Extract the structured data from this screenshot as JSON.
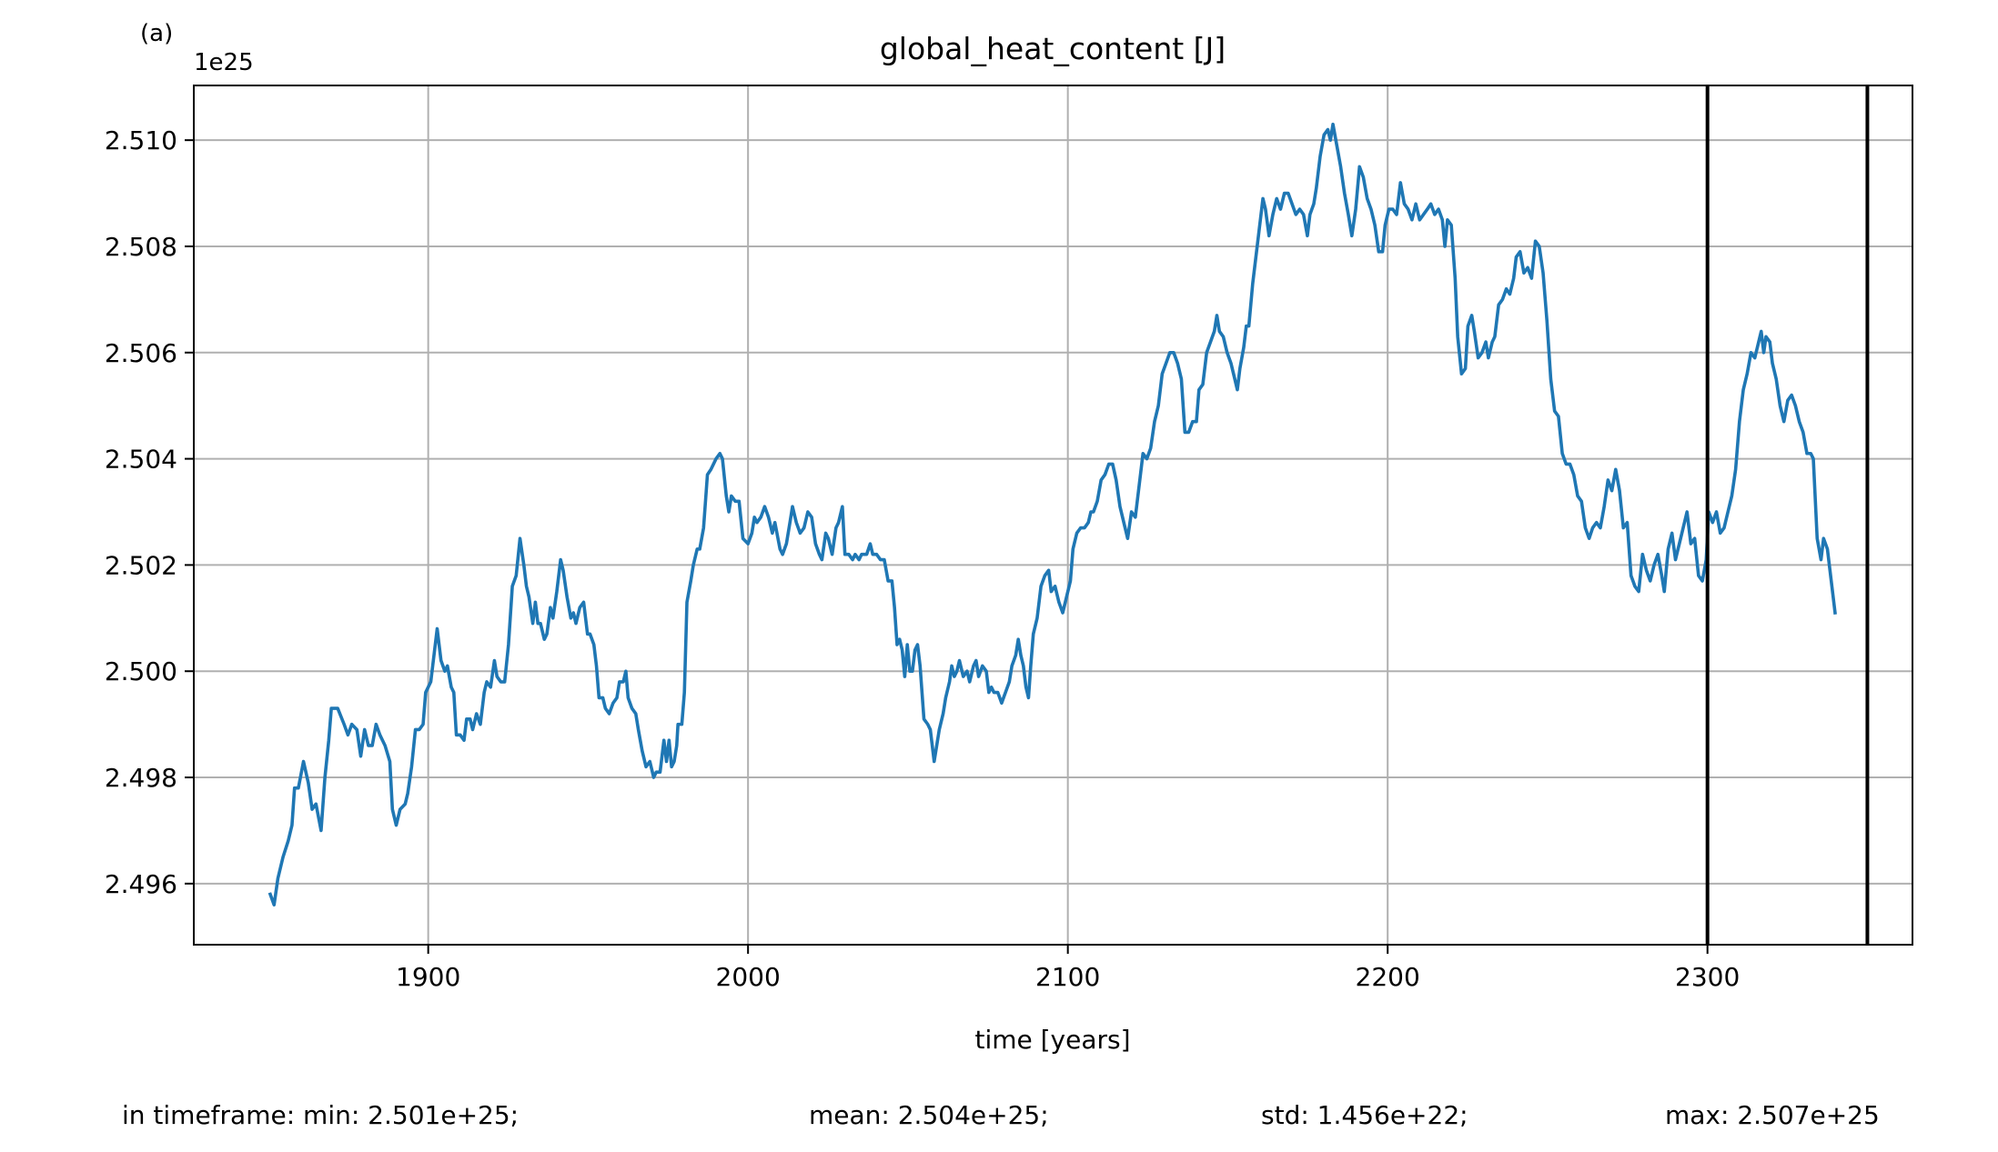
{
  "chart_data": {
    "type": "line",
    "panel_label": "(a)",
    "title": "global_heat_content [J]",
    "offset_label": "1e25",
    "xlabel": "time [years]",
    "footer": [
      "in timeframe: min: 2.501e+25;",
      "mean: 2.504e+25;",
      "std: 1.456e+22;",
      "max: 2.507e+25"
    ],
    "color": "#1f77b4",
    "grid": true,
    "vlines": [
      2300,
      2350
    ],
    "vline_color": "#000000",
    "xlim": [
      1826.7,
      2364.1
    ],
    "ylim": [
      2.49485,
      2.51103
    ],
    "xticks": [
      1900,
      2000,
      2100,
      2200,
      2300
    ],
    "yticks": [
      2.496,
      2.498,
      {
        "value": 2.5,
        "label": "2.500"
      },
      2.502,
      2.504,
      2.506,
      2.508,
      {
        "value": 2.51,
        "label": "2.510"
      }
    ],
    "x": [
      1850.6,
      1851.8,
      1853.0,
      1854.6,
      1856.2,
      1857.4,
      1858.2,
      1859.4,
      1861.0,
      1862.5,
      1863.7,
      1864.9,
      1866.5,
      1867.7,
      1868.9,
      1869.7,
      1871.7,
      1873.7,
      1874.9,
      1876.1,
      1877.7,
      1878.9,
      1880.1,
      1881.3,
      1882.5,
      1883.7,
      1884.9,
      1886.5,
      1888.0,
      1888.8,
      1890.0,
      1891.2,
      1892.8,
      1893.6,
      1894.8,
      1896.0,
      1897.2,
      1898.4,
      1899.2,
      1900.8,
      1901.6,
      1902.8,
      1904.0,
      1905.2,
      1906.0,
      1907.2,
      1908.0,
      1908.8,
      1910.0,
      1911.2,
      1912.0,
      1913.1,
      1913.9,
      1915.1,
      1916.3,
      1917.5,
      1918.3,
      1919.5,
      1920.7,
      1921.5,
      1922.7,
      1923.9,
      1925.1,
      1926.3,
      1927.5,
      1928.7,
      1929.9,
      1930.7,
      1931.5,
      1932.7,
      1933.5,
      1934.3,
      1935.1,
      1936.3,
      1937.1,
      1938.2,
      1939.0,
      1940.2,
      1941.4,
      1942.2,
      1943.4,
      1944.6,
      1945.4,
      1946.2,
      1947.4,
      1948.6,
      1949.8,
      1950.6,
      1951.8,
      1952.6,
      1953.4,
      1954.6,
      1955.4,
      1956.6,
      1957.8,
      1959.0,
      1959.8,
      1961.0,
      1961.8,
      1962.5,
      1963.7,
      1964.9,
      1965.7,
      1966.9,
      1968.1,
      1969.3,
      1970.5,
      1971.3,
      1972.5,
      1973.7,
      1974.5,
      1975.3,
      1976.1,
      1976.9,
      1977.7,
      1978.1,
      1979.3,
      1980.1,
      1980.9,
      1982.1,
      1982.9,
      1984.1,
      1984.9,
      1986.1,
      1987.3,
      1988.4,
      1989.2,
      1990.0,
      1991.2,
      1992.0,
      1993.2,
      1994.0,
      1994.8,
      1996.0,
      1997.2,
      1998.4,
      2000.0,
      2001.2,
      2002.0,
      2002.8,
      2004.0,
      2005.2,
      2006.4,
      2007.6,
      2008.4,
      2010.0,
      2010.8,
      2012.0,
      2013.1,
      2013.9,
      2015.1,
      2016.3,
      2017.5,
      2018.7,
      2019.9,
      2021.1,
      2022.3,
      2023.1,
      2024.3,
      2025.1,
      2026.3,
      2027.5,
      2028.3,
      2029.5,
      2030.3,
      2031.5,
      2032.7,
      2033.5,
      2034.7,
      2035.5,
      2037.1,
      2038.2,
      2039.0,
      2040.2,
      2041.4,
      2042.6,
      2043.8,
      2045.0,
      2045.8,
      2046.6,
      2047.4,
      2048.2,
      2049.0,
      2049.8,
      2050.6,
      2051.4,
      2052.2,
      2053.0,
      2053.8,
      2055.0,
      2056.2,
      2057.0,
      2058.2,
      2059.0,
      2059.8,
      2061.0,
      2061.8,
      2063.0,
      2063.7,
      2064.5,
      2065.3,
      2066.1,
      2067.3,
      2068.5,
      2069.3,
      2070.5,
      2071.3,
      2072.1,
      2073.3,
      2074.5,
      2075.3,
      2076.1,
      2076.9,
      2078.1,
      2079.3,
      2080.5,
      2081.7,
      2082.5,
      2083.7,
      2084.5,
      2085.3,
      2086.1,
      2086.9,
      2087.7,
      2088.4,
      2089.2,
      2090.4,
      2091.6,
      2092.8,
      2094.0,
      2094.8,
      2096.0,
      2097.2,
      2098.4,
      2099.6,
      2100.8,
      2101.6,
      2102.8,
      2104.0,
      2105.2,
      2106.4,
      2107.2,
      2108.0,
      2109.2,
      2110.4,
      2111.6,
      2112.8,
      2114.0,
      2115.1,
      2116.3,
      2117.5,
      2118.7,
      2119.9,
      2121.1,
      2122.3,
      2123.5,
      2124.7,
      2125.9,
      2127.1,
      2128.3,
      2129.5,
      2130.7,
      2131.9,
      2133.1,
      2134.3,
      2135.5,
      2136.6,
      2137.8,
      2139.0,
      2140.2,
      2141.0,
      2142.2,
      2143.4,
      2144.6,
      2145.8,
      2146.6,
      2147.4,
      2148.6,
      2149.8,
      2151.0,
      2152.2,
      2153.0,
      2153.8,
      2155.0,
      2155.8,
      2156.6,
      2157.8,
      2158.6,
      2159.8,
      2161.0,
      2161.8,
      2162.9,
      2164.1,
      2165.3,
      2166.5,
      2167.7,
      2168.9,
      2170.1,
      2171.3,
      2172.5,
      2173.7,
      2174.9,
      2175.7,
      2176.9,
      2177.7,
      2178.9,
      2180.1,
      2181.3,
      2182.1,
      2182.9,
      2184.1,
      2185.3,
      2186.5,
      2187.7,
      2188.8,
      2190.0,
      2191.2,
      2192.4,
      2193.6,
      2194.8,
      2196.0,
      2197.2,
      2198.4,
      2199.2,
      2200.4,
      2201.6,
      2202.8,
      2204.0,
      2205.2,
      2206.4,
      2207.6,
      2208.8,
      2210.0,
      2211.2,
      2212.4,
      2213.5,
      2214.7,
      2215.9,
      2217.1,
      2217.9,
      2218.7,
      2219.9,
      2221.1,
      2221.9,
      2223.1,
      2224.3,
      2225.1,
      2226.3,
      2227.1,
      2228.3,
      2229.5,
      2230.7,
      2231.5,
      2232.7,
      2233.5,
      2234.7,
      2235.9,
      2237.1,
      2238.2,
      2239.4,
      2240.2,
      2241.4,
      2242.6,
      2243.8,
      2245.0,
      2246.2,
      2247.4,
      2248.6,
      2249.8,
      2251.0,
      2252.2,
      2253.4,
      2254.6,
      2255.8,
      2257.0,
      2258.2,
      2259.4,
      2260.6,
      2261.8,
      2263.0,
      2264.1,
      2265.3,
      2266.5,
      2267.7,
      2268.9,
      2270.1,
      2271.3,
      2272.5,
      2273.7,
      2274.9,
      2276.1,
      2277.3,
      2278.5,
      2279.7,
      2280.9,
      2282.1,
      2283.3,
      2284.5,
      2285.7,
      2286.5,
      2287.7,
      2288.9,
      2290.0,
      2291.2,
      2292.4,
      2293.6,
      2294.8,
      2296.0,
      2297.2,
      2298.4,
      2299.6,
      2300.4,
      2301.6,
      2302.8,
      2304.0,
      2305.2,
      2306.4,
      2307.6,
      2308.8,
      2310.0,
      2311.2,
      2312.4,
      2313.6,
      2314.8,
      2316.0,
      2316.8,
      2317.6,
      2318.3,
      2319.5,
      2320.3,
      2321.5,
      2322.7,
      2323.9,
      2325.1,
      2326.3,
      2327.5,
      2328.7,
      2329.9,
      2331.1,
      2332.3,
      2333.1,
      2334.3,
      2335.5,
      2336.3,
      2337.5,
      2338.7,
      2339.9
    ],
    "values": [
      2.4958,
      2.4956,
      2.4961,
      2.4965,
      2.4968,
      2.4971,
      2.4978,
      2.4978,
      2.4983,
      2.4979,
      2.4974,
      2.4975,
      2.497,
      2.498,
      2.4987,
      2.4993,
      2.4993,
      2.499,
      2.4988,
      2.499,
      2.4989,
      2.4984,
      2.4989,
      2.4986,
      2.4986,
      2.499,
      2.4988,
      2.4986,
      2.4983,
      2.4974,
      2.4971,
      2.4974,
      2.4975,
      2.4977,
      2.4982,
      2.4989,
      2.4989,
      2.499,
      2.4996,
      2.4998,
      2.5002,
      2.5008,
      2.5002,
      2.5,
      2.5001,
      2.4997,
      2.4996,
      2.4988,
      2.4988,
      2.4987,
      2.4991,
      2.4991,
      2.4989,
      2.4992,
      2.499,
      2.4996,
      2.4998,
      2.4997,
      2.5002,
      2.4999,
      2.4998,
      2.4998,
      2.5005,
      2.5016,
      2.5018,
      2.5025,
      2.502,
      2.5016,
      2.5014,
      2.5009,
      2.5013,
      2.5009,
      2.5009,
      2.5006,
      2.5007,
      2.5012,
      2.501,
      2.5015,
      2.5021,
      2.5019,
      2.5014,
      2.501,
      2.5011,
      2.5009,
      2.5012,
      2.5013,
      2.5007,
      2.5007,
      2.5005,
      2.5001,
      2.4995,
      2.4995,
      2.4993,
      2.4992,
      2.4994,
      2.4995,
      2.4998,
      2.4998,
      2.5,
      2.4995,
      2.4993,
      2.4992,
      2.4989,
      2.4985,
      2.4982,
      2.4983,
      2.498,
      2.4981,
      2.4981,
      2.4987,
      2.4983,
      2.4987,
      2.4982,
      2.4983,
      2.4986,
      2.499,
      2.499,
      2.4996,
      2.5013,
      2.5017,
      2.502,
      2.5023,
      2.5023,
      2.5027,
      2.5037,
      2.5038,
      2.5039,
      2.504,
      2.5041,
      2.504,
      2.5033,
      2.503,
      2.5033,
      2.5032,
      2.5032,
      2.5025,
      2.5024,
      2.5026,
      2.5029,
      2.5028,
      2.5029,
      2.5031,
      2.5029,
      2.5026,
      2.5028,
      2.5023,
      2.5022,
      2.5024,
      2.5028,
      2.5031,
      2.5028,
      2.5026,
      2.5027,
      2.503,
      2.5029,
      2.5024,
      2.5022,
      2.5021,
      2.5026,
      2.5025,
      2.5022,
      2.5027,
      2.5028,
      2.5031,
      2.5022,
      2.5022,
      2.5021,
      2.5022,
      2.5021,
      2.5022,
      2.5022,
      2.5024,
      2.5022,
      2.5022,
      2.5021,
      2.5021,
      2.5017,
      2.5017,
      2.5012,
      2.5005,
      2.5006,
      2.5004,
      2.4999,
      2.5005,
      2.5,
      2.5,
      2.5004,
      2.5005,
      2.5001,
      2.4991,
      2.499,
      2.4989,
      2.4983,
      2.4986,
      2.4989,
      2.4992,
      2.4995,
      2.4998,
      2.5001,
      2.4999,
      2.5,
      2.5002,
      2.4999,
      2.5,
      2.4998,
      2.5001,
      2.5002,
      2.4999,
      2.5001,
      2.5,
      2.4996,
      2.4997,
      2.4996,
      2.4996,
      2.4994,
      2.4996,
      2.4998,
      2.5001,
      2.5003,
      2.5006,
      2.5003,
      2.5001,
      2.4997,
      2.4995,
      2.5001,
      2.5007,
      2.501,
      2.5016,
      2.5018,
      2.5019,
      2.5015,
      2.5016,
      2.5013,
      2.5011,
      2.5014,
      2.5017,
      2.5023,
      2.5026,
      2.5027,
      2.5027,
      2.5028,
      2.503,
      2.503,
      2.5032,
      2.5036,
      2.5037,
      2.5039,
      2.5039,
      2.5036,
      2.5031,
      2.5028,
      2.5025,
      2.503,
      2.5029,
      2.5035,
      2.5041,
      2.504,
      2.5042,
      2.5047,
      2.505,
      2.5056,
      2.5058,
      2.506,
      2.506,
      2.5058,
      2.5055,
      2.5045,
      2.5045,
      2.5047,
      2.5047,
      2.5053,
      2.5054,
      2.506,
      2.5062,
      2.5064,
      2.5067,
      2.5064,
      2.5063,
      2.506,
      2.5058,
      2.5055,
      2.5053,
      2.5057,
      2.5061,
      2.5065,
      2.5065,
      2.5073,
      2.5077,
      2.5083,
      2.5089,
      2.5087,
      2.5082,
      2.5086,
      2.5089,
      2.5087,
      2.509,
      2.509,
      2.5088,
      2.5086,
      2.5087,
      2.5086,
      2.5082,
      2.5086,
      2.5088,
      2.5091,
      2.5097,
      2.5101,
      2.5102,
      2.51,
      2.5103,
      2.5099,
      2.5095,
      2.509,
      2.5086,
      2.5082,
      2.5087,
      2.5095,
      2.5093,
      2.5089,
      2.5087,
      2.5084,
      2.5079,
      2.5079,
      2.5084,
      2.5087,
      2.5087,
      2.5086,
      2.5092,
      2.5088,
      2.5087,
      2.5085,
      2.5088,
      2.5085,
      2.5086,
      2.5087,
      2.5088,
      2.5086,
      2.5087,
      2.5085,
      2.508,
      2.5085,
      2.5084,
      2.5074,
      2.5063,
      2.5056,
      2.5057,
      2.5065,
      2.5067,
      2.5064,
      2.5059,
      2.506,
      2.5062,
      2.5059,
      2.5062,
      2.5063,
      2.5069,
      2.507,
      2.5072,
      2.5071,
      2.5074,
      2.5078,
      2.5079,
      2.5075,
      2.5076,
      2.5074,
      2.5081,
      2.508,
      2.5075,
      2.5066,
      2.5055,
      2.5049,
      2.5048,
      2.5041,
      2.5039,
      2.5039,
      2.5037,
      2.5033,
      2.5032,
      2.5027,
      2.5025,
      2.5027,
      2.5028,
      2.5027,
      2.5031,
      2.5036,
      2.5034,
      2.5038,
      2.5034,
      2.5027,
      2.5028,
      2.5018,
      2.5016,
      2.5015,
      2.5022,
      2.5019,
      2.5017,
      2.502,
      2.5022,
      2.5018,
      2.5015,
      2.5023,
      2.5026,
      2.5021,
      2.5024,
      2.5027,
      2.503,
      2.5024,
      2.5025,
      2.5018,
      2.5017,
      2.5021,
      2.503,
      2.5028,
      2.503,
      2.5026,
      2.5027,
      2.503,
      2.5033,
      2.5038,
      2.5047,
      2.5053,
      2.5056,
      2.506,
      2.5059,
      2.5062,
      2.5064,
      2.506,
      2.5063,
      2.5062,
      2.5058,
      2.5055,
      2.505,
      2.5047,
      2.5051,
      2.5052,
      2.505,
      2.5047,
      2.5045,
      2.5041,
      2.5041,
      2.504,
      2.5025,
      2.5021,
      2.5025,
      2.5023,
      2.5017,
      2.5011
    ]
  }
}
